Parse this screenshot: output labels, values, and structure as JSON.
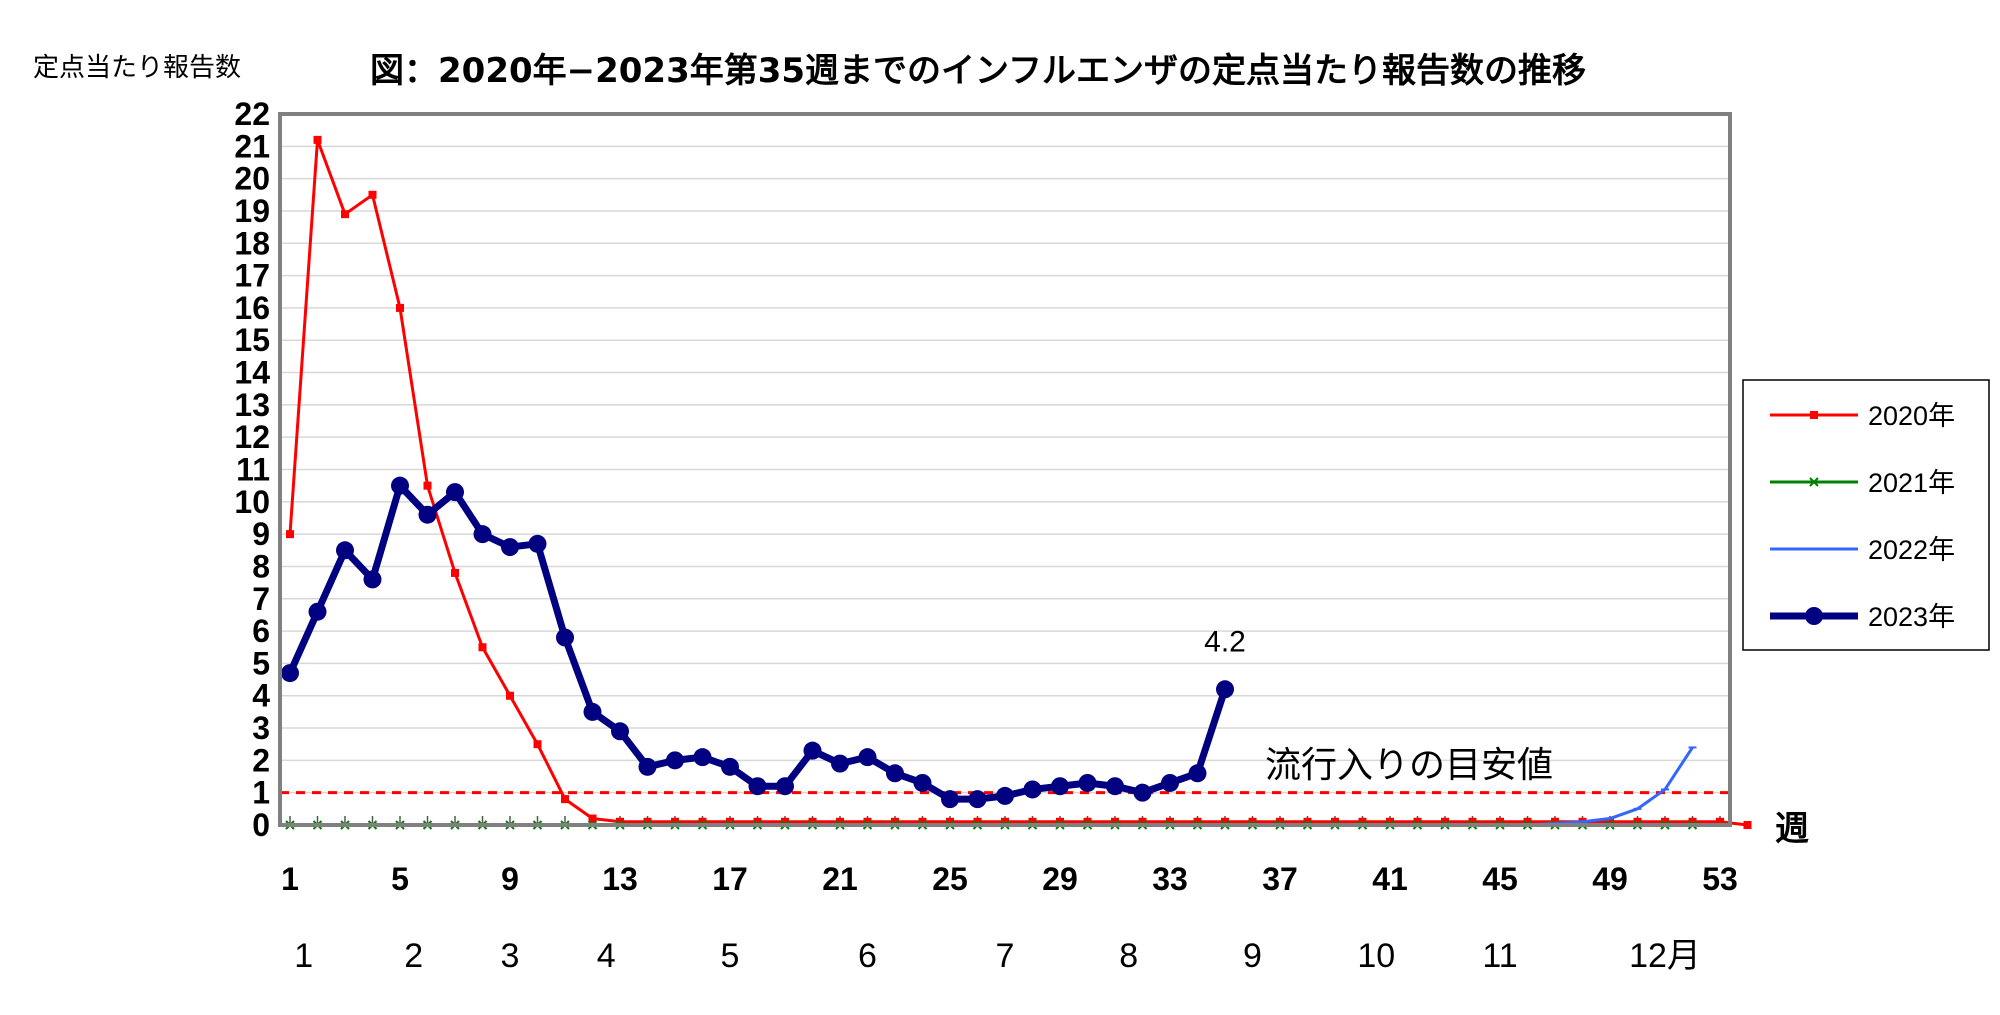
{
  "chart_data": {
    "type": "line",
    "title": "図：2020年−2023年第35週までのインフルエンザの定点当たり報告数の推移",
    "ylabel": "定点当たり報告数",
    "xlabel": "週",
    "ylim": [
      0,
      22
    ],
    "yticks": [
      "0",
      "1",
      "2",
      "3",
      "4",
      "5",
      "6",
      "7",
      "8",
      "9",
      "10",
      "11",
      "12",
      "13",
      "14",
      "15",
      "16",
      "17",
      "18",
      "19",
      "20",
      "21",
      "22"
    ],
    "xlim": [
      1,
      53
    ],
    "xticks": [
      "1",
      "5",
      "9",
      "13",
      "17",
      "21",
      "25",
      "29",
      "33",
      "37",
      "41",
      "45",
      "49",
      "53"
    ],
    "month_labels": [
      {
        "label": "1",
        "week": 1.5
      },
      {
        "label": "2",
        "week": 5.5
      },
      {
        "label": "3",
        "week": 9
      },
      {
        "label": "4",
        "week": 12.5
      },
      {
        "label": "5",
        "week": 17
      },
      {
        "label": "6",
        "week": 22
      },
      {
        "label": "7",
        "week": 27
      },
      {
        "label": "8",
        "week": 31.5
      },
      {
        "label": "9",
        "week": 36
      },
      {
        "label": "10",
        "week": 40.5
      },
      {
        "label": "11",
        "week": 45
      },
      {
        "label": "12月",
        "week": 51
      }
    ],
    "grid": true,
    "legend_position": "right",
    "reference_line": {
      "value": 1,
      "label": "流行入りの目安値",
      "color": "#ff0000"
    },
    "annotations": [
      {
        "series": "2023年",
        "week": 35,
        "text": "4.2"
      }
    ],
    "series": [
      {
        "name": "2020年",
        "color": "#ff0000",
        "marker": "square",
        "width": 3,
        "values": [
          9.0,
          21.2,
          18.9,
          19.5,
          16.0,
          10.5,
          7.8,
          5.5,
          4.0,
          2.5,
          0.8,
          0.2,
          0.1,
          0.1,
          0.1,
          0.1,
          0.1,
          0.1,
          0.1,
          0.1,
          0.1,
          0.1,
          0.1,
          0.1,
          0.1,
          0.1,
          0.1,
          0.1,
          0.1,
          0.1,
          0.1,
          0.1,
          0.1,
          0.1,
          0.1,
          0.1,
          0.1,
          0.1,
          0.1,
          0.1,
          0.1,
          0.1,
          0.1,
          0.1,
          0.1,
          0.1,
          0.1,
          0.1,
          0.1,
          0.1,
          0.1,
          0.1,
          0.1,
          0.0
        ]
      },
      {
        "name": "2021年",
        "color": "#008000",
        "marker": "x",
        "width": 3,
        "values": [
          0,
          0,
          0,
          0,
          0,
          0,
          0,
          0,
          0,
          0,
          0,
          0,
          0,
          0,
          0,
          0,
          0,
          0,
          0,
          0,
          0,
          0,
          0,
          0,
          0,
          0,
          0,
          0,
          0,
          0,
          0,
          0,
          0,
          0,
          0,
          0,
          0,
          0,
          0,
          0,
          0,
          0,
          0,
          0,
          0,
          0,
          0,
          0,
          0,
          0,
          0,
          0
        ]
      },
      {
        "name": "2022年",
        "color": "#3366ff",
        "marker": "dash",
        "width": 3,
        "values": [
          0,
          0,
          0,
          0,
          0,
          0,
          0,
          0,
          0,
          0,
          0,
          0,
          0,
          0,
          0,
          0,
          0,
          0,
          0,
          0,
          0,
          0,
          0,
          0,
          0,
          0,
          0,
          0,
          0,
          0,
          0,
          0,
          0,
          0,
          0,
          0,
          0,
          0,
          0,
          0,
          0,
          0,
          0,
          0,
          0,
          0,
          0.05,
          0.1,
          0.2,
          0.5,
          1.1,
          2.4
        ]
      },
      {
        "name": "2023年",
        "color": "#000080",
        "marker": "circle",
        "width": 7,
        "values": [
          4.7,
          6.6,
          8.5,
          7.6,
          10.5,
          9.6,
          10.3,
          9.0,
          8.6,
          8.7,
          5.8,
          3.5,
          2.9,
          1.8,
          2.0,
          2.1,
          1.8,
          1.2,
          1.2,
          2.3,
          1.9,
          2.1,
          1.6,
          1.3,
          0.8,
          0.8,
          0.9,
          1.1,
          1.2,
          1.3,
          1.2,
          1.0,
          1.3,
          1.6,
          4.2
        ]
      }
    ]
  }
}
